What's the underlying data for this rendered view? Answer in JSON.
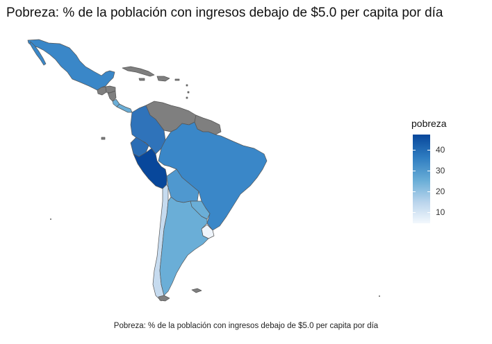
{
  "title": "Pobreza: % de la población con ingresos debajo de $5.0 per capita por día",
  "caption": "Pobreza: % de la población con ingresos debajo de $5.0 per capita por día",
  "legend": {
    "title": "pobreza",
    "ticks": [
      {
        "value": 40,
        "label": "40"
      },
      {
        "value": 30,
        "label": "30"
      },
      {
        "value": 20,
        "label": "20"
      },
      {
        "value": 10,
        "label": "10"
      }
    ],
    "colors": {
      "high": "#08479b",
      "mid": "#2f7dc1",
      "low": "#b9d4ec",
      "min": "#f3f8fd",
      "na": "#7f7f7f"
    }
  },
  "countries": [
    {
      "name": "México",
      "fill": "#3a87c8"
    },
    {
      "name": "Guatemala",
      "fill": "#7f7f7f"
    },
    {
      "name": "Honduras",
      "fill": "#7f7f7f"
    },
    {
      "name": "Nicaragua",
      "fill": "#7f7f7f"
    },
    {
      "name": "Costa Rica",
      "fill": "#6aaed7"
    },
    {
      "name": "Panamá",
      "fill": "#6aaed7"
    },
    {
      "name": "Cuba",
      "fill": "#7f7f7f"
    },
    {
      "name": "Venezuela",
      "fill": "#7f7f7f"
    },
    {
      "name": "Guyanas",
      "fill": "#7f7f7f"
    },
    {
      "name": "Colombia",
      "fill": "#2f73ba"
    },
    {
      "name": "Ecuador",
      "fill": "#2a6db5"
    },
    {
      "name": "Perú",
      "fill": "#08479b"
    },
    {
      "name": "Brasil",
      "fill": "#3a87c8"
    },
    {
      "name": "Bolivia",
      "fill": "#4f98cf"
    },
    {
      "name": "Paraguay",
      "fill": "#6aaed7"
    },
    {
      "name": "Uruguay",
      "fill": "#eef4fb"
    },
    {
      "name": "Chile",
      "fill": "#c6dbef"
    },
    {
      "name": "Argentina",
      "fill": "#6aaed7"
    }
  ]
}
